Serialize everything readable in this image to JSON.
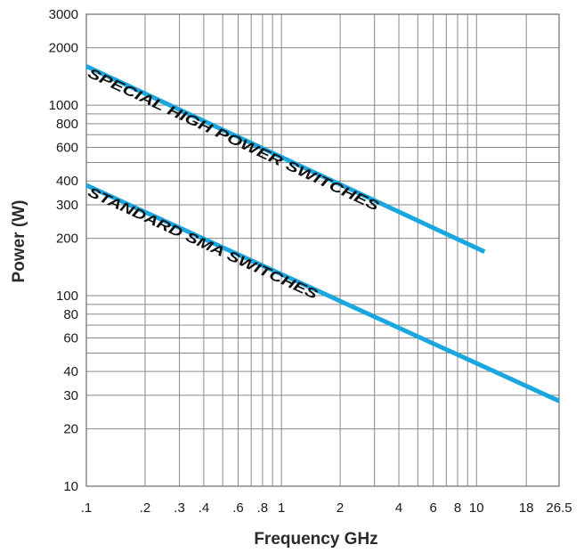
{
  "chart_data": {
    "type": "line",
    "xlabel": "Frequency GHz",
    "ylabel": "Power (W)",
    "xscale": "log",
    "yscale": "log",
    "xlim": [
      0.1,
      26.5
    ],
    "ylim": [
      10,
      3000
    ],
    "grid": true,
    "x_gridlines": [
      0.1,
      0.2,
      0.3,
      0.4,
      0.5,
      0.6,
      0.7,
      0.8,
      0.9,
      1,
      2,
      3,
      4,
      5,
      6,
      7,
      8,
      9,
      10,
      18,
      26.5
    ],
    "y_gridlines": [
      10,
      20,
      30,
      40,
      50,
      60,
      70,
      80,
      90,
      100,
      200,
      300,
      400,
      500,
      600,
      700,
      800,
      900,
      1000,
      2000,
      3000
    ],
    "x_ticks": [
      {
        "value": 0.1,
        "label": ".1"
      },
      {
        "value": 0.2,
        "label": ".2"
      },
      {
        "value": 0.3,
        "label": ".3"
      },
      {
        "value": 0.4,
        "label": ".4"
      },
      {
        "value": 0.6,
        "label": ".6"
      },
      {
        "value": 0.8,
        "label": ".8"
      },
      {
        "value": 1,
        "label": "1"
      },
      {
        "value": 2,
        "label": "2"
      },
      {
        "value": 4,
        "label": "4"
      },
      {
        "value": 6,
        "label": "6"
      },
      {
        "value": 8,
        "label": "8"
      },
      {
        "value": 10,
        "label": "10"
      },
      {
        "value": 18,
        "label": "18"
      },
      {
        "value": 26.5,
        "label": "26.5"
      }
    ],
    "y_ticks": [
      {
        "value": 10,
        "label": "10"
      },
      {
        "value": 20,
        "label": "20"
      },
      {
        "value": 30,
        "label": "30"
      },
      {
        "value": 40,
        "label": "40"
      },
      {
        "value": 60,
        "label": "60"
      },
      {
        "value": 80,
        "label": "80"
      },
      {
        "value": 100,
        "label": "100"
      },
      {
        "value": 200,
        "label": "200"
      },
      {
        "value": 300,
        "label": "300"
      },
      {
        "value": 400,
        "label": "400"
      },
      {
        "value": 600,
        "label": "600"
      },
      {
        "value": 800,
        "label": "800"
      },
      {
        "value": 1000,
        "label": "1000"
      },
      {
        "value": 2000,
        "label": "2000"
      },
      {
        "value": 3000,
        "label": "3000"
      }
    ],
    "series": [
      {
        "name": "SPECIAL HIGH POWER SWITCHES",
        "color": "#1aa7e0",
        "x": [
          0.1,
          11
        ],
        "y": [
          1600,
          170
        ]
      },
      {
        "name": "STANDARD SMA SWITCHES",
        "color": "#1aa7e0",
        "x": [
          0.1,
          26.5
        ],
        "y": [
          380,
          28
        ]
      }
    ]
  }
}
